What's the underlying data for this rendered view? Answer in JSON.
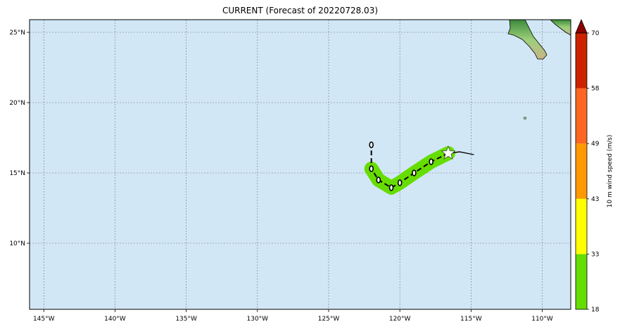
{
  "title": "CURRENT (Forecast of 20220728.03)",
  "map": {
    "lon_range": [
      -146,
      -108
    ],
    "lat_range": [
      5.3,
      25.9
    ],
    "lon_ticks": [
      -145,
      -140,
      -135,
      -130,
      -125,
      -120,
      -115,
      -110
    ],
    "lon_tick_labels": [
      "145°W",
      "140°W",
      "135°W",
      "130°W",
      "125°W",
      "120°W",
      "115°W",
      "110°W"
    ],
    "lat_ticks": [
      10,
      15,
      20,
      25
    ],
    "lat_tick_labels": [
      "10°N",
      "15°N",
      "20°N",
      "25°N"
    ],
    "grid": true,
    "ocean_color": "#d1e7f6",
    "swath_color": "#66dd00"
  },
  "track": {
    "current_position": {
      "lon": -116.6,
      "lat": 16.4,
      "marker": "star"
    },
    "past_track": [
      {
        "lon": -116.6,
        "lat": 16.4
      },
      {
        "lon": -115.8,
        "lat": 16.5
      },
      {
        "lon": -114.8,
        "lat": 16.3
      }
    ],
    "forecast_track": [
      {
        "lon": -116.6,
        "lat": 16.4
      },
      {
        "lon": -117.8,
        "lat": 15.8
      },
      {
        "lon": -119.0,
        "lat": 15.0
      },
      {
        "lon": -120.0,
        "lat": 14.3
      },
      {
        "lon": -120.6,
        "lat": 13.95
      },
      {
        "lon": -121.5,
        "lat": 14.5
      },
      {
        "lon": -122.0,
        "lat": 15.3
      },
      {
        "lon": -122.0,
        "lat": 17.0
      }
    ],
    "forecast_points": [
      {
        "lon": -117.8,
        "lat": 15.8
      },
      {
        "lon": -119.0,
        "lat": 15.0
      },
      {
        "lon": -120.0,
        "lat": 14.3
      },
      {
        "lon": -120.6,
        "lat": 13.95
      },
      {
        "lon": -121.5,
        "lat": 14.5
      },
      {
        "lon": -122.0,
        "lat": 15.3
      },
      {
        "lon": -122.0,
        "lat": 17.0
      }
    ]
  },
  "colorbar": {
    "title": "10 m wind speed (m/s)",
    "bounds": [
      18,
      33,
      43,
      49,
      58,
      70
    ],
    "labels": [
      "18",
      "33",
      "43",
      "49",
      "58",
      "70"
    ],
    "colors": [
      "#66dd00",
      "#ffff00",
      "#ff9900",
      "#ff6622",
      "#cc2200"
    ],
    "extend_color": "#8b0000"
  }
}
